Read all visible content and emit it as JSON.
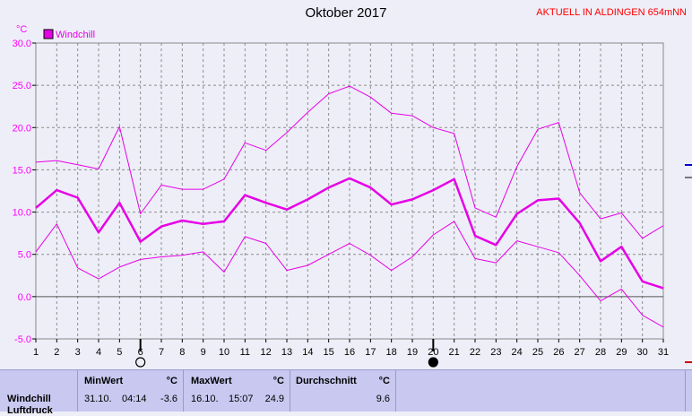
{
  "chart_data": {
    "type": "line",
    "title": "Oktober 2017",
    "unit_label": "°C",
    "location_label": "AKTUELL IN ALDINGEN 654mNN",
    "legend": [
      {
        "name": "Windchill",
        "color": "#e600e6"
      }
    ],
    "x": [
      1,
      2,
      3,
      4,
      5,
      6,
      7,
      8,
      9,
      10,
      11,
      12,
      13,
      14,
      15,
      16,
      17,
      18,
      19,
      20,
      21,
      22,
      23,
      24,
      25,
      26,
      27,
      28,
      29,
      30,
      31
    ],
    "ylim": [
      -5,
      30
    ],
    "yticks": [
      "30.0",
      "25.0",
      "20.0",
      "15.0",
      "10.0",
      "5.0",
      "0.0",
      "-5.0"
    ],
    "grid": true,
    "series": [
      {
        "name": "Windchill",
        "role": "max",
        "values": [
          15.9,
          16.1,
          15.6,
          15.1,
          20.1,
          9.8,
          13.2,
          12.7,
          12.7,
          13.9,
          18.2,
          17.3,
          19.4,
          21.8,
          24.0,
          24.9,
          23.6,
          21.7,
          21.4,
          20.0,
          19.3,
          10.5,
          9.4,
          15.4,
          19.8,
          20.6,
          12.3,
          9.2,
          9.9,
          6.9,
          8.4
        ]
      },
      {
        "name": "Windchill",
        "role": "mean",
        "values": [
          10.5,
          12.6,
          11.7,
          7.6,
          11.1,
          6.5,
          8.3,
          9.0,
          8.6,
          8.9,
          12.0,
          11.1,
          10.3,
          11.5,
          12.9,
          14.0,
          12.9,
          10.9,
          11.5,
          12.6,
          13.9,
          7.2,
          6.1,
          9.8,
          11.4,
          11.6,
          8.7,
          4.2,
          5.9,
          1.8,
          1.0
        ]
      },
      {
        "name": "Windchill",
        "role": "min",
        "values": [
          5.3,
          8.6,
          3.4,
          2.1,
          3.5,
          4.4,
          4.7,
          4.9,
          5.3,
          2.9,
          7.1,
          6.3,
          3.1,
          3.7,
          5.0,
          6.3,
          4.9,
          3.1,
          4.7,
          7.3,
          8.9,
          4.5,
          4.0,
          6.6,
          5.9,
          5.2,
          2.5,
          -0.5,
          0.9,
          -2.2,
          -3.6
        ]
      }
    ],
    "markers": [
      {
        "day": 6,
        "symbol": "full-moon"
      },
      {
        "day": 20,
        "symbol": "new-moon"
      }
    ]
  },
  "stats": {
    "row_label": "Windchill",
    "row_label_2": "Luftdruck",
    "min": {
      "header": "MinWert",
      "unit": "°C",
      "date": "31.10.",
      "time": "04:14",
      "value": "-3.6"
    },
    "max": {
      "header": "MaxWert",
      "unit": "°C",
      "date": "16.10.",
      "time": "15:07",
      "value": "24.9"
    },
    "avg": {
      "header": "Durchschnitt",
      "unit": "°C",
      "value": "9.6"
    }
  }
}
